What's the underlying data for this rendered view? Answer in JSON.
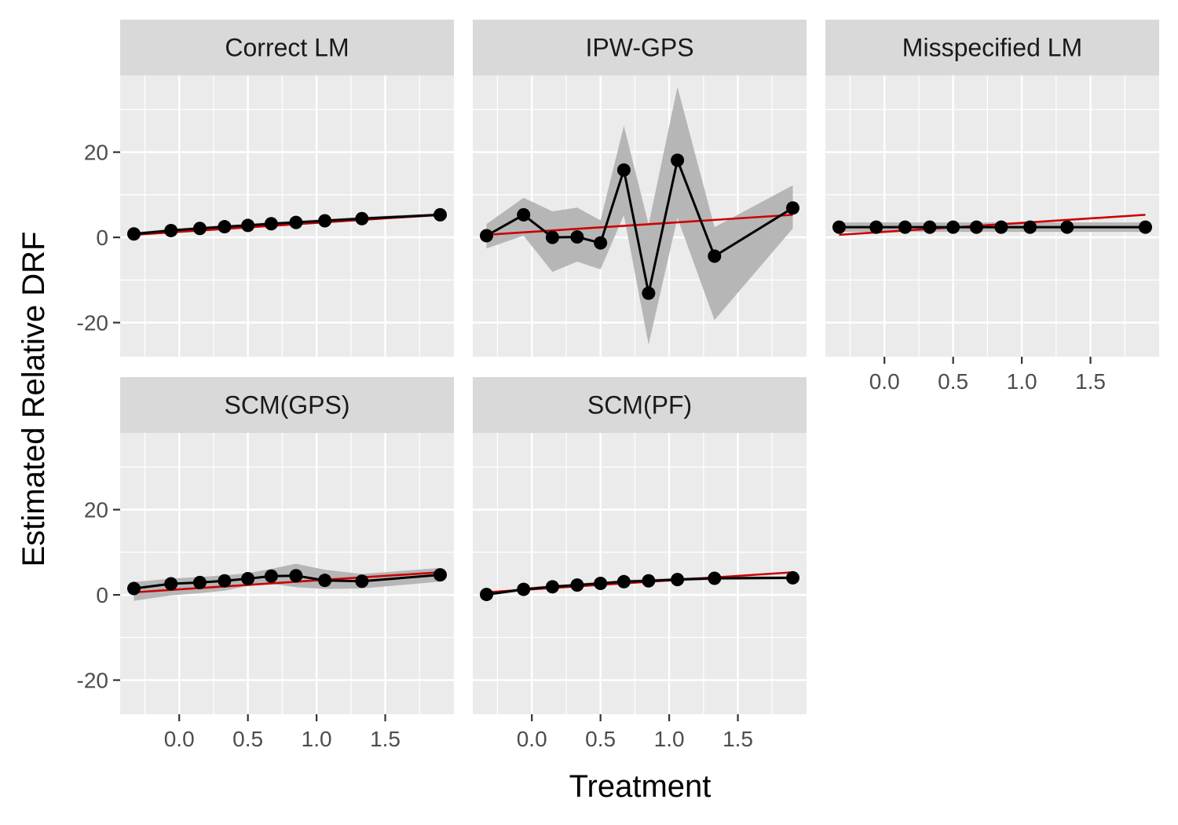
{
  "chart_data": {
    "type": "line",
    "facets": [
      "Correct LM",
      "IPW-GPS",
      "Misspecified LM",
      "SCM(GPS)",
      "SCM(PF)"
    ],
    "xlabel": "Treatment",
    "ylabel": "Estimated Relative DRF",
    "xlim": [
      -0.43,
      2.0
    ],
    "ylim": [
      -28,
      38
    ],
    "x_ticks": [
      0.0,
      0.5,
      1.0,
      1.5
    ],
    "x_tick_labels": [
      "0.0",
      "0.5",
      "1.0",
      "1.5"
    ],
    "y_ticks": [
      -20,
      0,
      20
    ],
    "y_tick_labels": [
      "-20",
      "0",
      "20"
    ],
    "grid": true,
    "x": [
      -0.33,
      -0.06,
      0.15,
      0.33,
      0.5,
      0.67,
      0.85,
      1.06,
      1.33,
      1.9
    ],
    "reference_line": {
      "color": "#cc0000",
      "x": [
        -0.33,
        1.9
      ],
      "y": [
        0.6,
        5.3
      ]
    },
    "panels": [
      {
        "facet": "Correct LM",
        "y": [
          0.8,
          1.6,
          2.1,
          2.5,
          2.8,
          3.2,
          3.5,
          3.9,
          4.4,
          5.3
        ],
        "lower": [
          0.4,
          1.2,
          1.7,
          2.1,
          2.4,
          2.8,
          3.1,
          3.5,
          4.0,
          4.9
        ],
        "upper": [
          1.2,
          2.0,
          2.5,
          2.9,
          3.2,
          3.6,
          3.9,
          4.3,
          4.8,
          5.7
        ]
      },
      {
        "facet": "IPW-GPS",
        "y": [
          0.4,
          5.3,
          0.0,
          0.1,
          -1.3,
          15.8,
          -13.1,
          18.1,
          -4.4,
          6.9
        ],
        "lower": [
          -2.6,
          0.4,
          -8.1,
          -5.7,
          -7.5,
          5.2,
          -25.2,
          4.6,
          -19.4,
          2.1
        ],
        "upper": [
          3.1,
          9.3,
          6.1,
          7.0,
          4.0,
          26.2,
          3.0,
          35.3,
          2.4,
          12.2
        ]
      },
      {
        "facet": "Misspecified LM",
        "y": [
          2.4,
          2.4,
          2.4,
          2.4,
          2.4,
          2.4,
          2.4,
          2.4,
          2.4,
          2.4
        ],
        "lower": [
          1.3,
          1.3,
          1.3,
          1.3,
          1.3,
          1.3,
          1.3,
          1.3,
          1.3,
          1.3
        ],
        "upper": [
          3.5,
          3.5,
          3.5,
          3.5,
          3.5,
          3.5,
          3.5,
          3.5,
          3.5,
          3.5
        ]
      },
      {
        "facet": "SCM(GPS)",
        "y": [
          1.5,
          2.6,
          2.9,
          3.3,
          3.8,
          4.4,
          4.5,
          3.4,
          3.2,
          4.7
        ],
        "lower": [
          -1.4,
          -0.1,
          0.4,
          1.0,
          2.1,
          2.6,
          1.8,
          1.4,
          1.5,
          3.1
        ],
        "upper": [
          3.0,
          3.8,
          4.2,
          4.6,
          5.1,
          6.1,
          7.3,
          5.9,
          4.9,
          6.3
        ]
      },
      {
        "facet": "SCM(PF)",
        "y": [
          0.1,
          1.3,
          1.9,
          2.3,
          2.7,
          3.1,
          3.3,
          3.6,
          3.9,
          4.0
        ],
        "lower": [
          -0.3,
          0.9,
          1.5,
          1.9,
          2.3,
          2.7,
          2.9,
          3.2,
          3.5,
          3.6
        ],
        "upper": [
          0.5,
          1.7,
          2.3,
          2.7,
          3.1,
          3.5,
          3.7,
          4.0,
          4.3,
          4.4
        ]
      }
    ],
    "colors": {
      "panel_bg": "#ebebeb",
      "strip_bg": "#d9d9d9",
      "grid": "#ffffff",
      "ribbon": "#b3b3b3",
      "line": "#000000",
      "reference": "#cc0000"
    }
  }
}
